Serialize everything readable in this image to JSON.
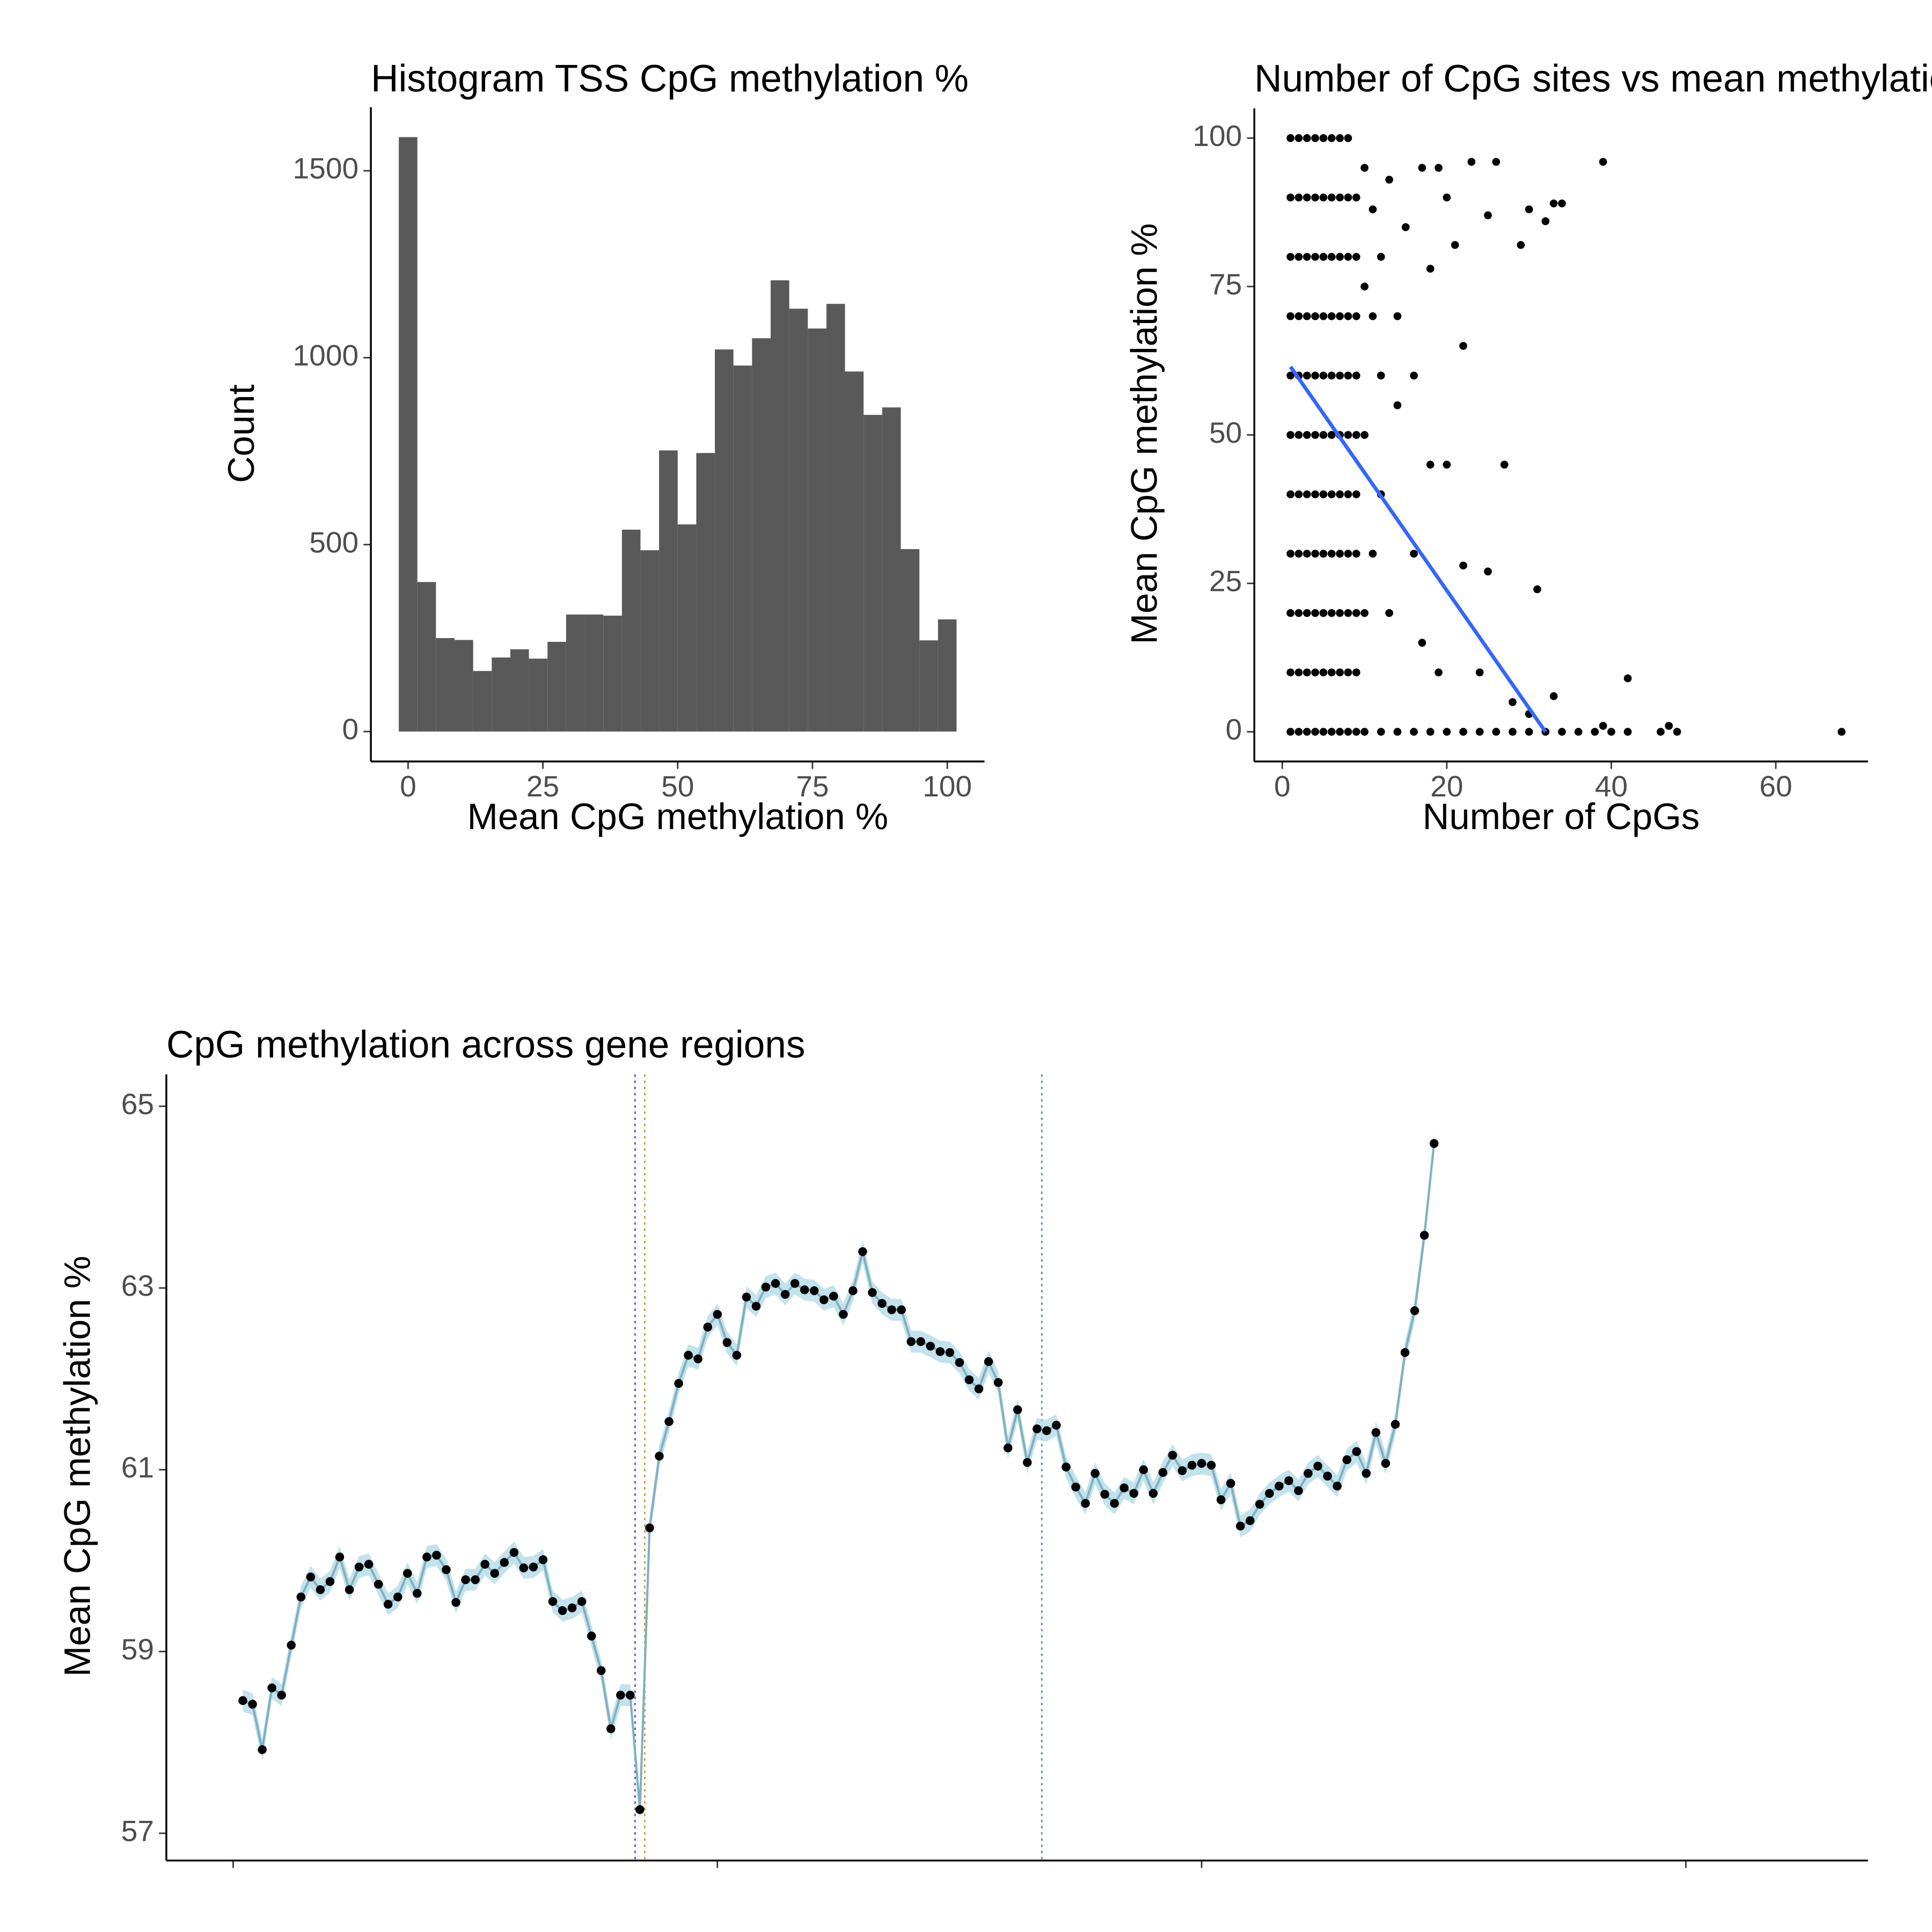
{
  "chart_data": [
    {
      "type": "histogram",
      "title": "Histogram TSS CpG methylation %",
      "xlabel": "Mean CpG methylation %",
      "ylabel": "Count",
      "bins": [
        -1.72,
        1.72,
        5.17,
        8.62,
        12.07,
        15.52,
        18.97,
        22.41,
        25.86,
        29.31,
        32.76,
        36.21,
        39.66,
        43.1,
        46.55,
        50.0,
        53.45,
        56.9,
        60.34,
        63.79,
        67.24,
        70.69,
        74.14,
        77.59,
        81.03,
        84.48,
        87.93,
        91.38,
        94.83,
        98.28,
        101.72
      ],
      "values": [
        1590,
        400,
        250,
        245,
        162,
        198,
        220,
        195,
        240,
        313,
        313,
        310,
        540,
        485,
        752,
        554,
        745,
        1022,
        979,
        1052,
        1207,
        1131,
        1078,
        1144,
        963,
        847,
        867,
        488,
        244,
        300
      ],
      "color": "#595959",
      "xlim": [
        -6.9,
        106.9
      ],
      "ylim": [
        -80,
        1670
      ],
      "xticks": [
        0,
        25,
        50,
        75,
        100
      ],
      "yticks": [
        0,
        500,
        1000,
        1500
      ]
    },
    {
      "type": "scatter",
      "title": "Number of CpG sites vs mean methylation",
      "xlabel": "Number of CpGs",
      "ylabel": "Mean CpG methylation %",
      "x": [
        1,
        1,
        1,
        1,
        1,
        1,
        1,
        1,
        1,
        1,
        1,
        2,
        2,
        2,
        2,
        2,
        2,
        2,
        2,
        2,
        2,
        2,
        3,
        3,
        3,
        3,
        3,
        3,
        3,
        3,
        3,
        3,
        3,
        4,
        4,
        4,
        4,
        4,
        4,
        4,
        4,
        4,
        4,
        4,
        5,
        5,
        5,
        5,
        5,
        5,
        5,
        5,
        5,
        5,
        5,
        6,
        6,
        6,
        6,
        6,
        6,
        6,
        6,
        6,
        6,
        6,
        7,
        7,
        7,
        7,
        7,
        7,
        7,
        7,
        7,
        7,
        7,
        8,
        8,
        8,
        8,
        8,
        8,
        8,
        8,
        8,
        8,
        8,
        9,
        9,
        9,
        9,
        9,
        9,
        9,
        9,
        9,
        9,
        10,
        11,
        12,
        13,
        14,
        15,
        16,
        17,
        18,
        19,
        20,
        21,
        22,
        23,
        25,
        26,
        29,
        30,
        32,
        33,
        34,
        39,
        10,
        12,
        14,
        16,
        18,
        20,
        27,
        13,
        17,
        19,
        22,
        25,
        31,
        24,
        28,
        10,
        12,
        14,
        16,
        18,
        20,
        22,
        24,
        26,
        28,
        30,
        32,
        34,
        36,
        38,
        40,
        42,
        46,
        48,
        68,
        39,
        42,
        33,
        30,
        47,
        11,
        11,
        12,
        10,
        10
      ],
      "y": [
        0,
        10,
        20,
        30,
        40,
        50,
        60,
        70,
        80,
        90,
        100,
        0,
        10,
        20,
        30,
        40,
        50,
        60,
        70,
        80,
        90,
        100,
        0,
        10,
        20,
        30,
        40,
        50,
        60,
        70,
        80,
        90,
        100,
        0,
        10,
        20,
        30,
        40,
        50,
        60,
        70,
        80,
        90,
        100,
        0,
        10,
        20,
        30,
        40,
        50,
        60,
        70,
        80,
        90,
        100,
        0,
        10,
        20,
        30,
        40,
        50,
        60,
        70,
        80,
        90,
        100,
        0,
        10,
        20,
        30,
        40,
        50,
        60,
        70,
        80,
        90,
        100,
        0,
        10,
        20,
        30,
        40,
        50,
        60,
        70,
        80,
        90,
        100,
        0,
        10,
        20,
        30,
        40,
        50,
        60,
        70,
        80,
        90,
        95,
        88,
        80,
        93,
        70,
        85,
        60,
        95,
        78,
        95,
        90,
        82,
        65,
        96,
        87,
        96,
        82,
        88,
        86,
        89,
        89,
        96,
        50,
        40,
        55,
        30,
        45,
        45,
        45,
        20,
        15,
        10,
        28,
        27,
        24,
        10,
        5,
        0,
        0,
        0,
        0,
        0,
        0,
        0,
        0,
        0,
        0,
        0,
        0,
        0,
        0,
        0,
        0,
        0,
        0,
        0,
        0,
        1,
        9,
        6,
        3,
        1,
        30,
        70,
        60,
        20,
        75
      ],
      "color": "#000000",
      "trend": {
        "x": [
          1,
          32
        ],
        "y": [
          61.5,
          0
        ],
        "color": "#3366ff"
      },
      "xlim": [
        -3.4,
        71.2
      ],
      "ylim": [
        -5,
        105
      ],
      "xticks": [
        0,
        20,
        40,
        60
      ],
      "yticks": [
        0,
        25,
        50,
        75,
        100
      ]
    },
    {
      "type": "line",
      "title": "CpG methylation across gene regions",
      "ylabel": "Mean CpG methylation %",
      "x": [
        1,
        2,
        3,
        4,
        5,
        6,
        7,
        8,
        9,
        10,
        11,
        12,
        13,
        14,
        15,
        16,
        17,
        18,
        19,
        20,
        21,
        22,
        23,
        24,
        25,
        26,
        27,
        28,
        29,
        30,
        31,
        32,
        33,
        34,
        35,
        36,
        37,
        38,
        39,
        40,
        41,
        42,
        43,
        44,
        45,
        46,
        47,
        48,
        49,
        50,
        51,
        52,
        53,
        54,
        55,
        56,
        57,
        58,
        59,
        60,
        61,
        62,
        63,
        64,
        65,
        66,
        67,
        68,
        69,
        70,
        71,
        72,
        73,
        74,
        75,
        76,
        77,
        78,
        79,
        80,
        81,
        82,
        83,
        84,
        85,
        86,
        87,
        88,
        89,
        90,
        91,
        92,
        93,
        94,
        95,
        96,
        97,
        98,
        99,
        100,
        101,
        102,
        103,
        104,
        105,
        106,
        107,
        108,
        109,
        110,
        111,
        112,
        113,
        114,
        115,
        116,
        117,
        118,
        119,
        120,
        121,
        122,
        123,
        124
      ],
      "series": [
        {
          "color": "#000000",
          "line_color": "#7fb0c0",
          "band_color": "#add8e6",
          "error": 0.12,
          "values": [
            58.46,
            58.42,
            57.92,
            58.6,
            58.52,
            59.07,
            59.6,
            59.82,
            59.68,
            59.77,
            60.04,
            59.68,
            59.93,
            59.96,
            59.74,
            59.52,
            59.6,
            59.86,
            59.64,
            60.04,
            60.06,
            59.9,
            59.54,
            59.79,
            59.79,
            59.96,
            59.86,
            59.98,
            60.09,
            59.92,
            59.93,
            60.01,
            59.55,
            59.45,
            59.48,
            59.55,
            59.17,
            58.79,
            58.15,
            58.52,
            58.52,
            57.26,
            60.36,
            61.15,
            61.53,
            61.95,
            62.26,
            62.22,
            62.57,
            62.71,
            62.4,
            62.26,
            62.9,
            62.8,
            63.01,
            63.05,
            62.93,
            63.05,
            62.98,
            62.97,
            62.87,
            62.91,
            62.71,
            62.97,
            63.4,
            62.95,
            62.83,
            62.76,
            62.76,
            62.41,
            62.41,
            62.36,
            62.3,
            62.29,
            62.18,
            61.99,
            61.89,
            62.19,
            61.96,
            61.24,
            61.66,
            61.08,
            61.45,
            61.43,
            61.49,
            61.03,
            60.81,
            60.63,
            60.96,
            60.73,
            60.63,
            60.8,
            60.74,
            61.0,
            60.74,
            60.97,
            61.16,
            60.99,
            61.05,
            61.07,
            61.05,
            60.67,
            60.85,
            60.38,
            60.44,
            60.62,
            60.74,
            60.82,
            60.88,
            60.77,
            60.96,
            61.04,
            60.93,
            60.82,
            61.11,
            61.2,
            60.96,
            61.41,
            61.07,
            61.5,
            62.29,
            62.75,
            63.58,
            64.59
          ]
        }
      ],
      "vlines": [
        {
          "x": 41.5,
          "color": "#5b5bd6"
        },
        {
          "x": 42.5,
          "color": "#c8a040"
        },
        {
          "x": 83.5,
          "color": "#6a8fc0"
        }
      ],
      "xlim": [
        -6.9,
        168.8
      ],
      "ylim": [
        56.7,
        65.35
      ],
      "xticks": [
        0,
        50,
        100,
        150
      ],
      "xtick_labels": false,
      "yticks": [
        57,
        59,
        61,
        63,
        65
      ]
    }
  ]
}
